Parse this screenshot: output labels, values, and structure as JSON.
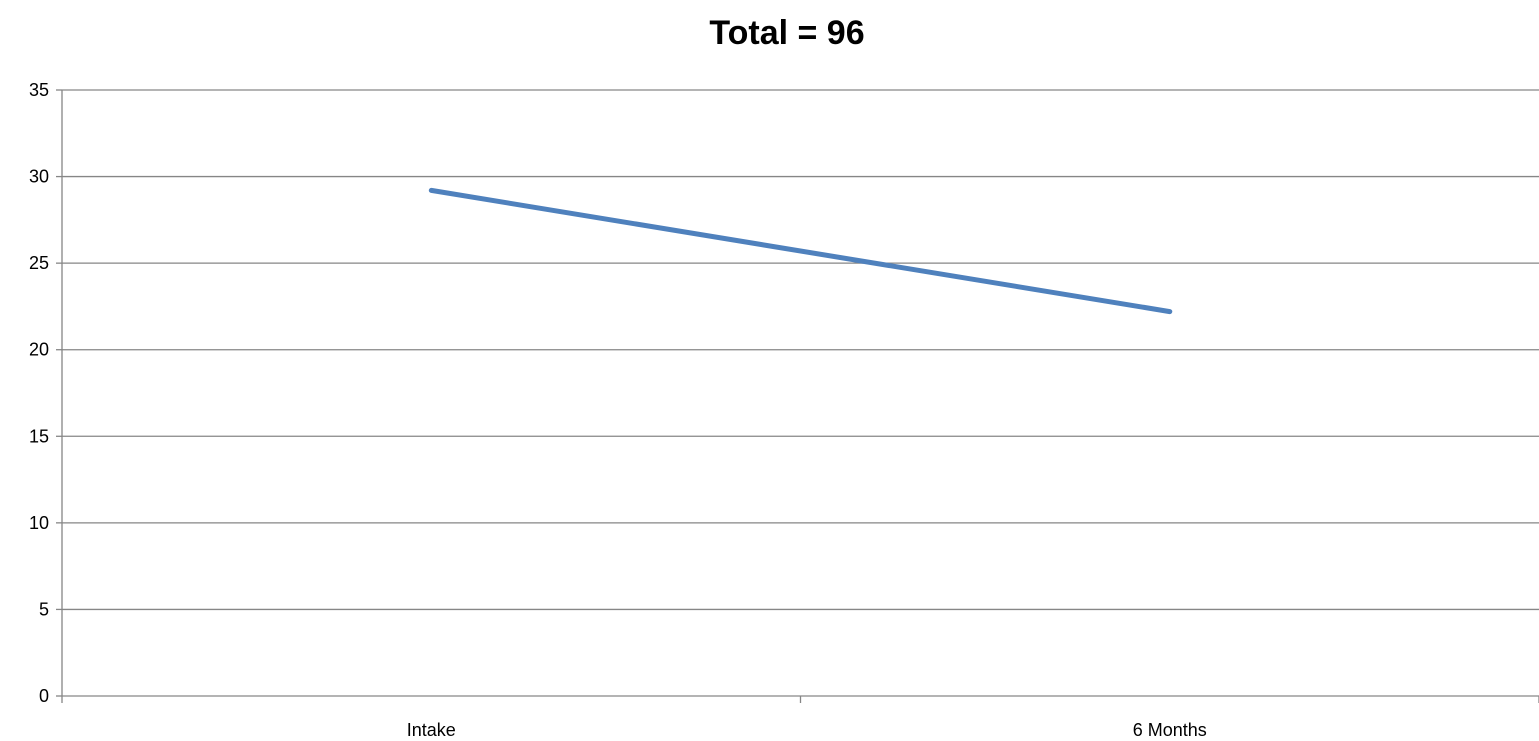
{
  "chart_data": {
    "type": "line",
    "title": "Total = 96",
    "categories": [
      "Intake",
      "6 Months"
    ],
    "series": [
      {
        "values": [
          29.2,
          22.2
        ],
        "color": "#4f81bd"
      }
    ],
    "xlabel": "",
    "ylabel": "",
    "ylim": [
      0,
      35
    ],
    "yticks": [
      "0",
      "5",
      "10",
      "15",
      "20",
      "25",
      "30",
      "35"
    ],
    "grid": true,
    "legend": "none"
  }
}
